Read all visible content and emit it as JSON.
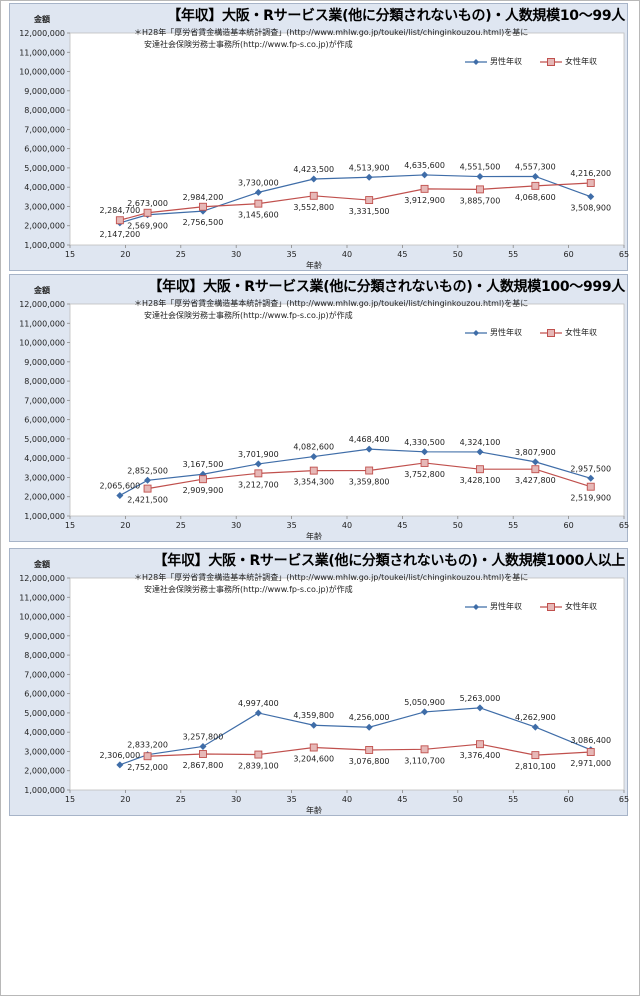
{
  "note_line1": "＊H28年「厚労省賃金構造基本統計調査」(http://www.mhlw.go.jp/toukei/list/chinginkouzou.html)を基に",
  "note_line2": "安達社会保険労務士事務所(http://www.fp-s.co.jp)が作成",
  "colors": {
    "male": "#3f6da8",
    "female": "#c0504d",
    "female_fill": "#e6b8b7"
  },
  "chart_data": [
    {
      "type": "line",
      "title": "【年収】大阪・Rサービス業(他に分類されないもの)・人数規模10～99人",
      "xlabel": "年齢",
      "ylabel": "金額",
      "xlim": [
        15,
        65
      ],
      "ylim": [
        1000000,
        12000000
      ],
      "x_ticks": [
        "15",
        "20",
        "25",
        "30",
        "35",
        "40",
        "45",
        "50",
        "55",
        "60",
        "65"
      ],
      "y_ticks": [
        "1,000,000",
        "2,000,000",
        "3,000,000",
        "4,000,000",
        "5,000,000",
        "6,000,000",
        "7,000,000",
        "8,000,000",
        "9,000,000",
        "10,000,000",
        "11,000,000",
        "12,000,000"
      ],
      "x": [
        19.5,
        22,
        27,
        32,
        37,
        42,
        47,
        52,
        57,
        62
      ],
      "series": [
        {
          "name": "男性年収",
          "values": [
            2147200,
            2569900,
            2756500,
            3730000,
            4423500,
            4513900,
            4635600,
            4551500,
            4557300,
            3508900
          ],
          "labels": [
            "2,147,200",
            "2,569,900",
            "2,756,500",
            "3,730,000",
            "4,423,500",
            "4,513,900",
            "4,635,600",
            "4,551,500",
            "4,557,300",
            "3,508,900"
          ]
        },
        {
          "name": "女性年収",
          "values": [
            2284700,
            2673000,
            2984200,
            3145600,
            3552800,
            3331500,
            3912900,
            3885700,
            4068600,
            4216200
          ],
          "labels": [
            "2,284,700",
            "2,673,000",
            "2,984,200",
            "3,145,600",
            "3,552,800",
            "3,331,500",
            "3,912,900",
            "3,885,700",
            "4,068,600",
            "4,216,200"
          ]
        }
      ],
      "legend_position": "top-right",
      "grid": true
    },
    {
      "type": "line",
      "title": "【年収】大阪・Rサービス業(他に分類されないもの)・人数規模100～999人",
      "xlabel": "年齢",
      "ylabel": "金額",
      "xlim": [
        15,
        65
      ],
      "ylim": [
        1000000,
        12000000
      ],
      "x_ticks": [
        "15",
        "20",
        "25",
        "30",
        "35",
        "40",
        "45",
        "50",
        "55",
        "60",
        "65"
      ],
      "y_ticks": [
        "1,000,000",
        "2,000,000",
        "3,000,000",
        "4,000,000",
        "5,000,000",
        "6,000,000",
        "7,000,000",
        "8,000,000",
        "9,000,000",
        "10,000,000",
        "11,000,000",
        "12,000,000"
      ],
      "x": [
        19.5,
        22,
        27,
        32,
        37,
        42,
        47,
        52,
        57,
        62
      ],
      "series": [
        {
          "name": "男性年収",
          "values": [
            2065600,
            2852500,
            3167500,
            3701900,
            4082600,
            4468400,
            4330500,
            4324100,
            3807900,
            2957500
          ],
          "labels": [
            "2,065,600",
            "2,852,500",
            "3,167,500",
            "3,701,900",
            "4,082,600",
            "4,468,400",
            "4,330,500",
            "4,324,100",
            "3,807,900",
            "2,957,500"
          ]
        },
        {
          "name": "女性年収",
          "values": [
            null,
            2421500,
            2909900,
            3212700,
            3354300,
            3359800,
            3752800,
            3428100,
            3427800,
            2519900
          ],
          "labels": [
            "",
            "2,421,500",
            "2,909,900",
            "3,212,700",
            "3,354,300",
            "3,359,800",
            "3,752,800",
            "3,428,100",
            "3,427,800",
            "2,519,900"
          ]
        }
      ],
      "legend_position": "top-right",
      "grid": true
    },
    {
      "type": "line",
      "title": "【年収】大阪・Rサービス業(他に分類されないもの)・人数規模1000人以上",
      "xlabel": "年齢",
      "ylabel": "金額",
      "xlim": [
        15,
        65
      ],
      "ylim": [
        1000000,
        12000000
      ],
      "x_ticks": [
        "15",
        "20",
        "25",
        "30",
        "35",
        "40",
        "45",
        "50",
        "55",
        "60",
        "65"
      ],
      "y_ticks": [
        "1,000,000",
        "2,000,000",
        "3,000,000",
        "4,000,000",
        "5,000,000",
        "6,000,000",
        "7,000,000",
        "8,000,000",
        "9,000,000",
        "10,000,000",
        "11,000,000",
        "12,000,000"
      ],
      "x": [
        19.5,
        22,
        27,
        32,
        37,
        42,
        47,
        52,
        57,
        62
      ],
      "series": [
        {
          "name": "男性年収",
          "values": [
            2306000,
            2833200,
            3257800,
            4997400,
            4359800,
            4256000,
            5050900,
            5263000,
            4262900,
            3086400
          ],
          "labels": [
            "2,306,000",
            "2,833,200",
            "3,257,800",
            "4,997,400",
            "4,359,800",
            "4,256,000",
            "5,050,900",
            "5,263,000",
            "4,262,900",
            "3,086,400"
          ]
        },
        {
          "name": "女性年収",
          "values": [
            null,
            2752000,
            2867800,
            2839100,
            3204600,
            3076800,
            3110700,
            3376400,
            2810100,
            2971000
          ],
          "labels": [
            "",
            "2,752,000",
            "2,867,800",
            "2,839,100",
            "3,204,600",
            "3,076,800",
            "3,110,700",
            "3,376,400",
            "2,810,100",
            "2,971,000"
          ]
        }
      ],
      "legend_position": "top-right",
      "grid": true
    }
  ]
}
